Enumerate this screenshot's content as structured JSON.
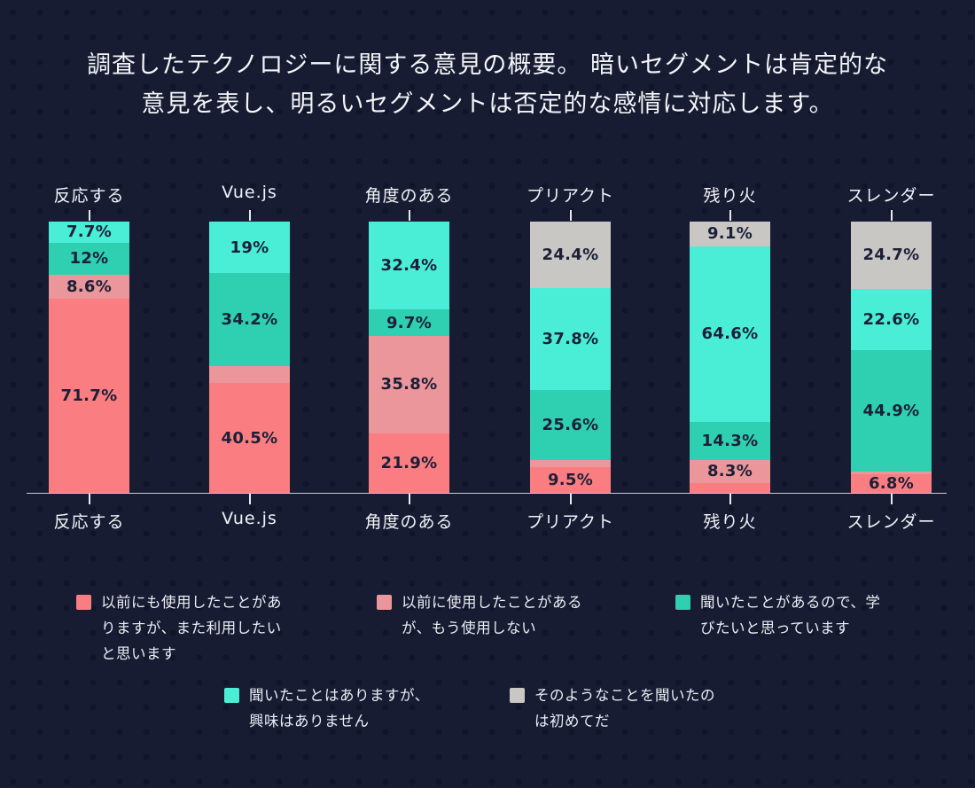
{
  "title": "調査したテクノロジーに関する意見の概要。 暗いセグメントは肯定的な\n意見を表し、明るいセグメントは否定的な感情に対応します。",
  "colors": {
    "background": "#171c33",
    "salmon": "#fa7e81",
    "muted_pink": "#eb969a",
    "teal": "#2fcfb2",
    "turquoise": "#4aeed6",
    "gray": "#c9c7c4",
    "axis": "#c6c9d2",
    "segment_label_text": "#1b2038"
  },
  "chart_data": {
    "type": "bar",
    "subtype": "stacked-percentage-column",
    "title": "調査したテクノロジーに関する意見の概要。 暗いセグメントは肯定的な意見を表し、明るいセグメントは否定的な感情に対応します。",
    "categories": [
      "反応する",
      "Vue.js",
      "角度のある",
      "プリアクト",
      "残り火",
      "スレンダー"
    ],
    "ylim": [
      0,
      100
    ],
    "grid": false,
    "legend_position": "bottom",
    "series": [
      {
        "key": "would-use-again",
        "name": "以前にも使用したことがありますが、また利用したいと思います",
        "color_key": "salmon",
        "values": [
          71.7,
          40.5,
          21.9,
          9.5,
          3.7,
          6.8
        ],
        "labels": [
          "71.7%",
          "40.5%",
          "21.9%",
          "9.5%",
          "",
          "6.8%"
        ]
      },
      {
        "key": "wont-use-again",
        "name": "以前に使用したことがあるが、もう使用しない",
        "color_key": "muted_pink",
        "values": [
          8.6,
          6.3,
          35.8,
          2.7,
          8.3,
          1.0
        ],
        "labels": [
          "8.6%",
          "",
          "35.8%",
          "",
          "8.3%",
          ""
        ]
      },
      {
        "key": "want-to-learn",
        "name": "聞いたことがあるので、学びたいと思っています",
        "color_key": "teal",
        "values": [
          12,
          34.2,
          9.7,
          25.6,
          14.3,
          44.9
        ],
        "labels": [
          "12%",
          "34.2%",
          "9.7%",
          "25.6%",
          "14.3%",
          "44.9%"
        ]
      },
      {
        "key": "not-interested",
        "name": "聞いたことはありますが、興味はありません",
        "color_key": "turquoise",
        "values": [
          7.7,
          19,
          32.4,
          37.8,
          64.6,
          22.6
        ],
        "labels": [
          "7.7%",
          "19%",
          "32.4%",
          "37.8%",
          "64.6%",
          "22.6%"
        ]
      },
      {
        "key": "never-heard-of-it",
        "name": "そのようなことを聞いたのは初めてだ",
        "color_key": "gray",
        "values": [
          0,
          0,
          0,
          24.4,
          9.1,
          24.7
        ],
        "labels": [
          "",
          "",
          "",
          "24.4%",
          "9.1%",
          "24.7%"
        ]
      }
    ]
  },
  "legend": {
    "items": [
      {
        "key": "would-use-again",
        "color_key": "salmon",
        "label": "以前にも使用したことがあ\nりますが、また利用したい\nと思います"
      },
      {
        "key": "wont-use-again",
        "color_key": "muted_pink",
        "label": "以前に使用したことがある\nが、もう使用しない"
      },
      {
        "key": "want-to-learn",
        "color_key": "teal",
        "label": "聞いたことがあるので、学\nびたいと思っています"
      },
      {
        "key": "not-interested",
        "color_key": "turquoise",
        "label": "聞いたことはありますが、\n興味はありません"
      },
      {
        "key": "never-heard-of-it",
        "color_key": "gray",
        "label": "そのようなことを聞いたの\nは初めてだ"
      }
    ]
  }
}
